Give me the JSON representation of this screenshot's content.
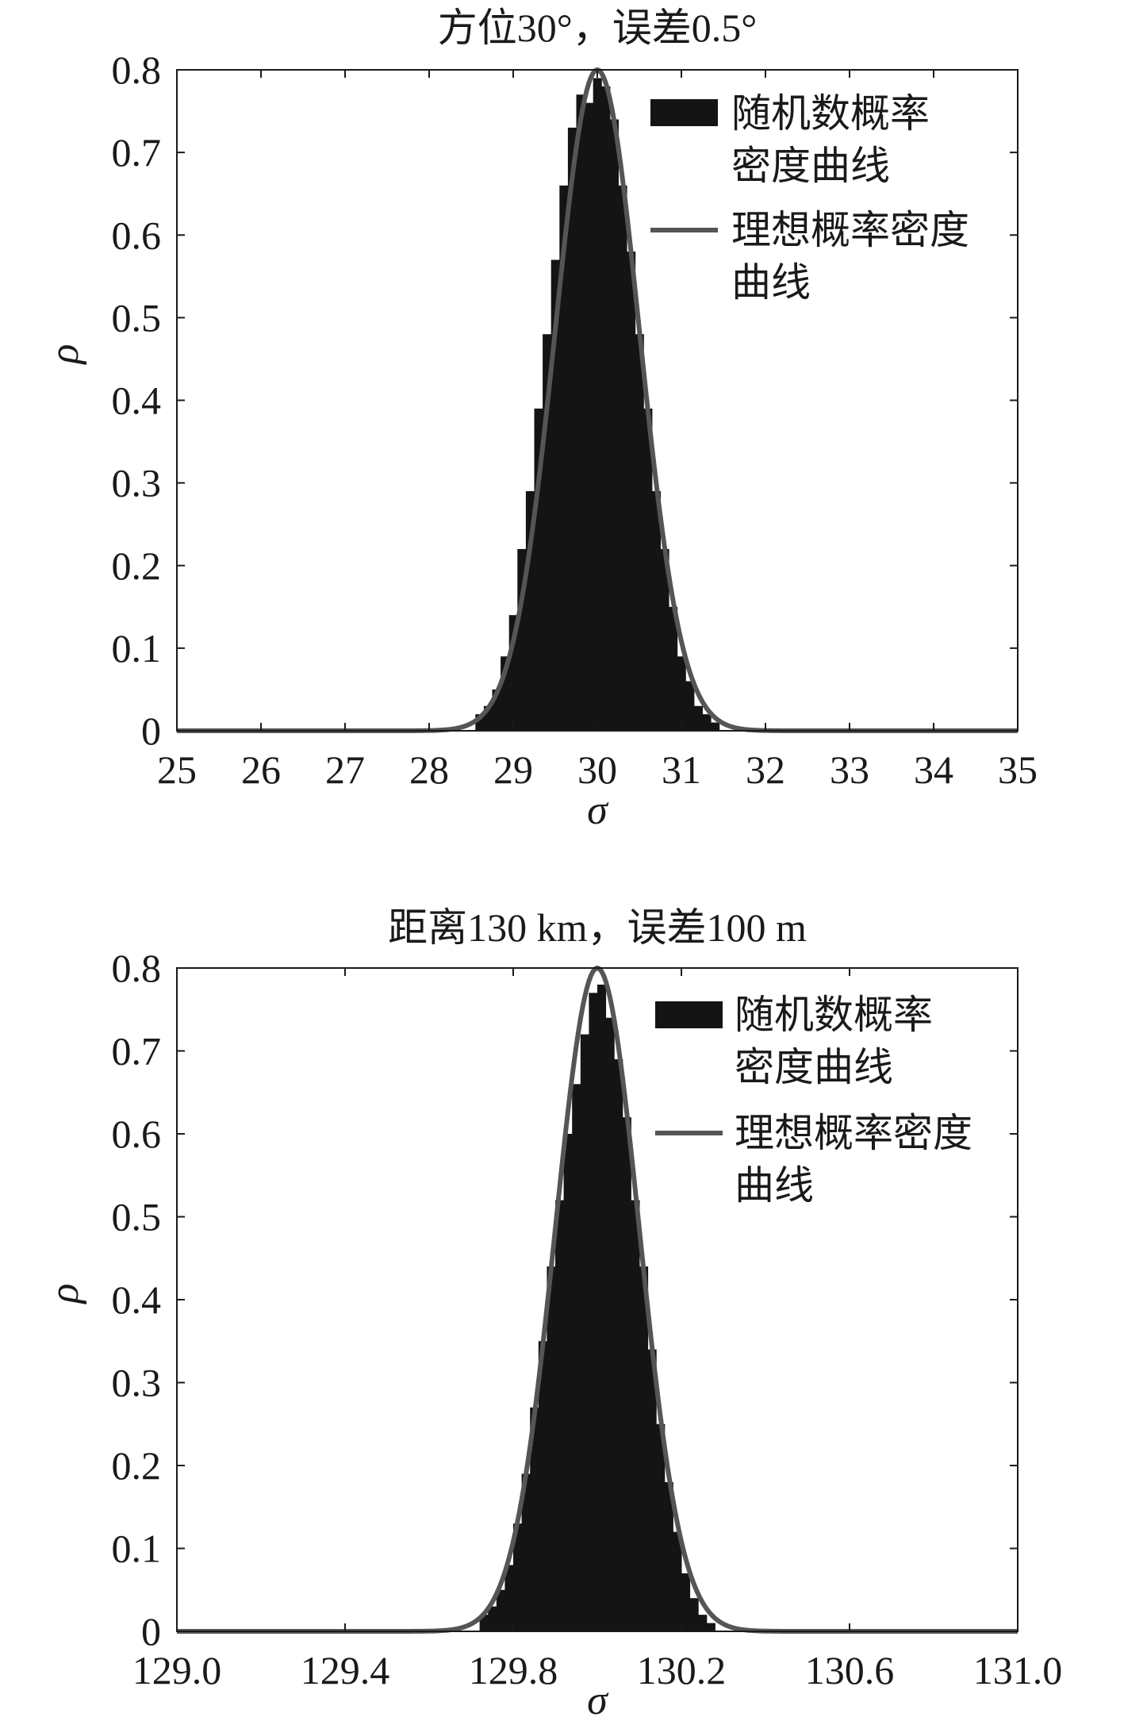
{
  "chart_data": [
    {
      "type": "bar",
      "title": "方位30°，误差0.5°",
      "xlabel": "σ",
      "ylabel": "ρ",
      "xlim": [
        25,
        35
      ],
      "ylim": [
        0,
        0.8
      ],
      "xticks": [
        "25",
        "26",
        "27",
        "28",
        "29",
        "30",
        "31",
        "32",
        "33",
        "34",
        "35"
      ],
      "yticks": [
        "0",
        "0.1",
        "0.2",
        "0.3",
        "0.4",
        "0.5",
        "0.6",
        "0.7",
        "0.8"
      ],
      "legend_position": "top-right",
      "series": [
        {
          "name": "随机数概率密度曲线",
          "kind": "histogram",
          "x": [
            28.6,
            28.7,
            28.8,
            28.9,
            29.0,
            29.1,
            29.2,
            29.3,
            29.4,
            29.5,
            29.6,
            29.7,
            29.8,
            29.9,
            30.0,
            30.1,
            30.2,
            30.3,
            30.4,
            30.5,
            30.6,
            30.7,
            30.8,
            30.9,
            31.0,
            31.1,
            31.2,
            31.3,
            31.4
          ],
          "values": [
            0.02,
            0.03,
            0.05,
            0.09,
            0.14,
            0.22,
            0.29,
            0.39,
            0.48,
            0.57,
            0.66,
            0.73,
            0.77,
            0.76,
            0.79,
            0.78,
            0.74,
            0.66,
            0.58,
            0.48,
            0.39,
            0.29,
            0.22,
            0.15,
            0.09,
            0.06,
            0.03,
            0.02,
            0.01
          ]
        },
        {
          "name": "理想概率密度曲线",
          "kind": "line",
          "distribution": "normal",
          "mean": 30,
          "std": 0.5,
          "peak": 0.8
        }
      ]
    },
    {
      "type": "bar",
      "title": "距离130 km，误差100 m",
      "xlabel": "σ",
      "ylabel": "ρ",
      "xlim": [
        129.0,
        131.0
      ],
      "ylim": [
        0,
        0.8
      ],
      "xticks": [
        "129.0",
        "129.4",
        "129.8",
        "130.2",
        "130.6",
        "131.0"
      ],
      "yticks": [
        "0",
        "0.1",
        "0.2",
        "0.3",
        "0.4",
        "0.5",
        "0.6",
        "0.7",
        "0.8"
      ],
      "legend_position": "top-right",
      "series": [
        {
          "name": "随机数概率密度曲线",
          "kind": "histogram",
          "x": [
            129.73,
            129.75,
            129.77,
            129.79,
            129.81,
            129.83,
            129.85,
            129.87,
            129.89,
            129.91,
            129.93,
            129.95,
            129.97,
            129.99,
            130.01,
            130.03,
            130.05,
            130.07,
            130.09,
            130.11,
            130.13,
            130.15,
            130.17,
            130.19,
            130.21,
            130.23,
            130.25,
            130.27
          ],
          "values": [
            0.02,
            0.03,
            0.05,
            0.08,
            0.13,
            0.19,
            0.27,
            0.35,
            0.44,
            0.52,
            0.6,
            0.66,
            0.72,
            0.77,
            0.78,
            0.74,
            0.69,
            0.62,
            0.52,
            0.44,
            0.34,
            0.25,
            0.18,
            0.12,
            0.07,
            0.04,
            0.02,
            0.01
          ]
        },
        {
          "name": "理想概率密度曲线",
          "kind": "line",
          "distribution": "normal",
          "mean": 130,
          "std": 0.1,
          "peak": 0.8
        }
      ]
    }
  ],
  "legend_lines": {
    "random_line1": "随机数概率",
    "random_line2": "密度曲线",
    "ideal_line1": "理想概率密度",
    "ideal_line2": "曲线"
  },
  "colors": {
    "bars": "#141414",
    "curve": "#555555",
    "frame": "#1a1a1a"
  }
}
